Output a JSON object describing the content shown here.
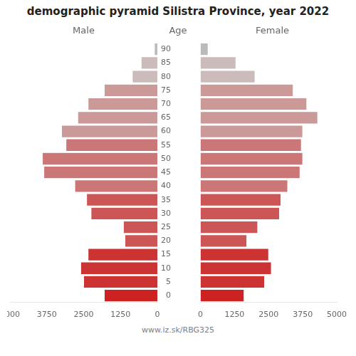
{
  "chart_data": {
    "type": "bar",
    "orientation": "horizontal",
    "title": "demographic pyramid Silistra Province, year 2022",
    "ylabel": "Age",
    "categories": [
      0,
      5,
      10,
      15,
      20,
      25,
      30,
      35,
      40,
      45,
      50,
      55,
      60,
      65,
      70,
      75,
      80,
      85,
      90
    ],
    "series": [
      {
        "name": "Male",
        "values": [
          1800,
          2500,
          2600,
          2350,
          1100,
          1150,
          2250,
          2400,
          2800,
          3850,
          3900,
          3100,
          3250,
          2700,
          2350,
          1800,
          850,
          550,
          100
        ],
        "colors": [
          "#cc2222",
          "#cc3333",
          "#cc3333",
          "#cc3333",
          "#cc5555",
          "#cc5555",
          "#cc5555",
          "#cc5555",
          "#cc7777",
          "#cc7777",
          "#cc7777",
          "#cc7777",
          "#cc9999",
          "#cc9999",
          "#cc9999",
          "#cc9999",
          "#ccbbbb",
          "#ccbbbb",
          "#bbbbbb"
        ]
      },
      {
        "name": "Female",
        "values": [
          1600,
          2350,
          2600,
          2500,
          1700,
          2100,
          2900,
          2950,
          3200,
          3650,
          3750,
          3700,
          3750,
          4300,
          3900,
          3400,
          2000,
          1300,
          280
        ],
        "colors": [
          "#cc2222",
          "#cc3333",
          "#cc3333",
          "#cc3333",
          "#cc5555",
          "#cc5555",
          "#cc5555",
          "#cc5555",
          "#cc7777",
          "#cc7777",
          "#cc7777",
          "#cc7777",
          "#cc9999",
          "#cc9999",
          "#cc9999",
          "#cc9999",
          "#ccbbbb",
          "#ccbbbb",
          "#bbbbbb"
        ]
      }
    ],
    "xlim": [
      0,
      5000
    ],
    "xticks": [
      0,
      1250,
      2500,
      3750,
      5000
    ],
    "grid": false,
    "annotations": [
      "www.iz.sk/RBG325"
    ]
  }
}
